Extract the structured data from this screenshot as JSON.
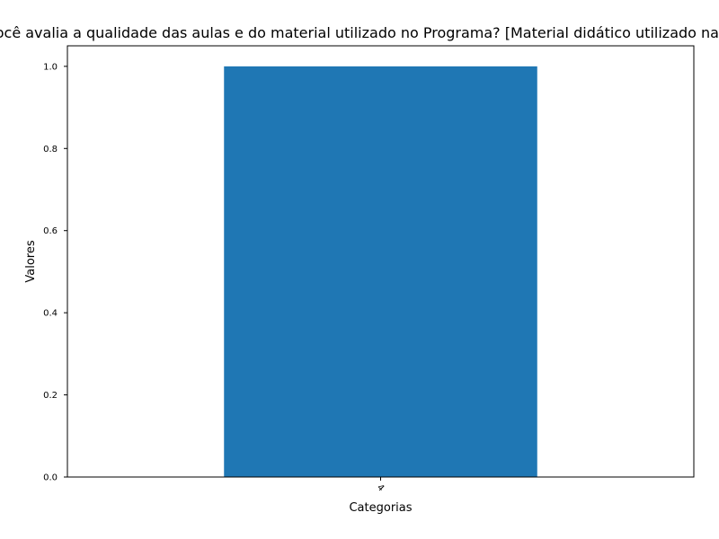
{
  "chart_data": {
    "type": "bar",
    "title": "Como você avalia a qualidade das aulas e do material utilizado no Programa?  [Material didático utilizado nas aulas]",
    "xlabel": "Categorias",
    "ylabel": "Valores",
    "categories": [
      "4"
    ],
    "values": [
      1
    ],
    "ylim": [
      0,
      1.05
    ],
    "yticks": [
      0.0,
      0.2,
      0.4,
      0.6,
      0.8,
      1.0
    ],
    "ytick_labels": [
      "0.0",
      "0.2",
      "0.4",
      "0.6",
      "0.8",
      "1.0"
    ],
    "xtick_rotation": 45,
    "grid": false,
    "legend": "none",
    "bar_color": "#1f77b4"
  }
}
